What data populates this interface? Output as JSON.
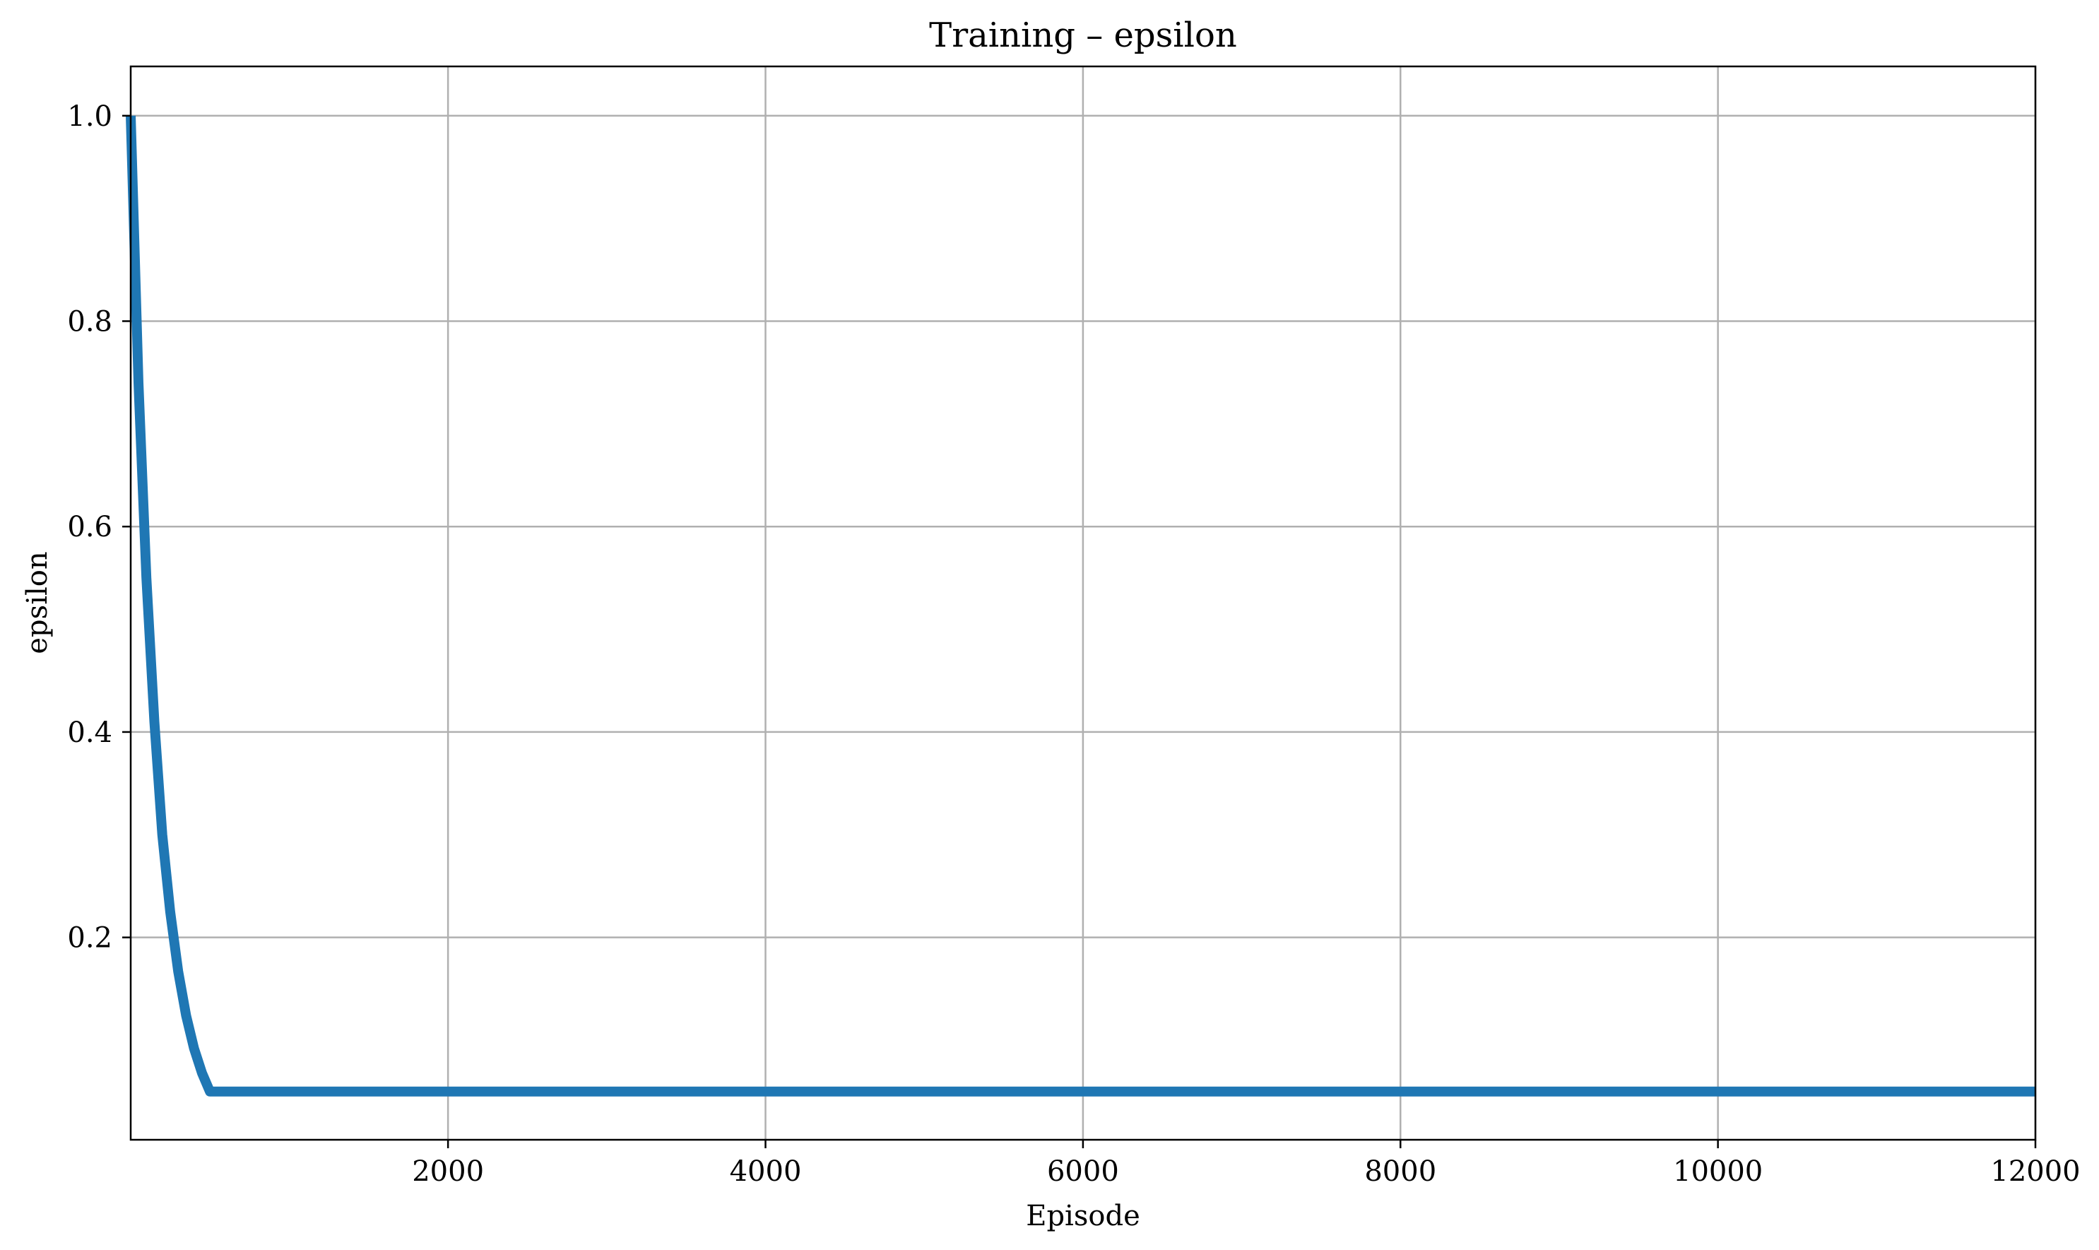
{
  "chart_data": {
    "type": "line",
    "title": "Training – epsilon",
    "xlabel": "Episode",
    "ylabel": "epsilon",
    "xlim": [
      1,
      12000
    ],
    "ylim": [
      0.003,
      1.048
    ],
    "xticks": [
      2000,
      4000,
      6000,
      8000,
      10000,
      12000
    ],
    "xtick_labels": [
      "2000",
      "4000",
      "6000",
      "8000",
      "10000",
      "12000"
    ],
    "yticks": [
      0.2,
      0.4,
      0.6,
      0.8,
      1.0
    ],
    "ytick_labels": [
      "0.2",
      "0.4",
      "0.6",
      "0.8",
      "1.0"
    ],
    "grid": true,
    "legend": "none",
    "colors": {
      "series": "#1f77b4",
      "grid": "#b0b0b0",
      "axes": "#000000"
    },
    "series": [
      {
        "x": [
          1,
          50,
          100,
          150,
          200,
          250,
          300,
          350,
          400,
          450,
          500,
          2000,
          4000,
          6000,
          8000,
          10000,
          12000
        ],
        "y": [
          1.0,
          0.74,
          0.55,
          0.41,
          0.3,
          0.225,
          0.167,
          0.124,
          0.092,
          0.068,
          0.05,
          0.05,
          0.05,
          0.05,
          0.05,
          0.05,
          0.05
        ]
      }
    ]
  }
}
